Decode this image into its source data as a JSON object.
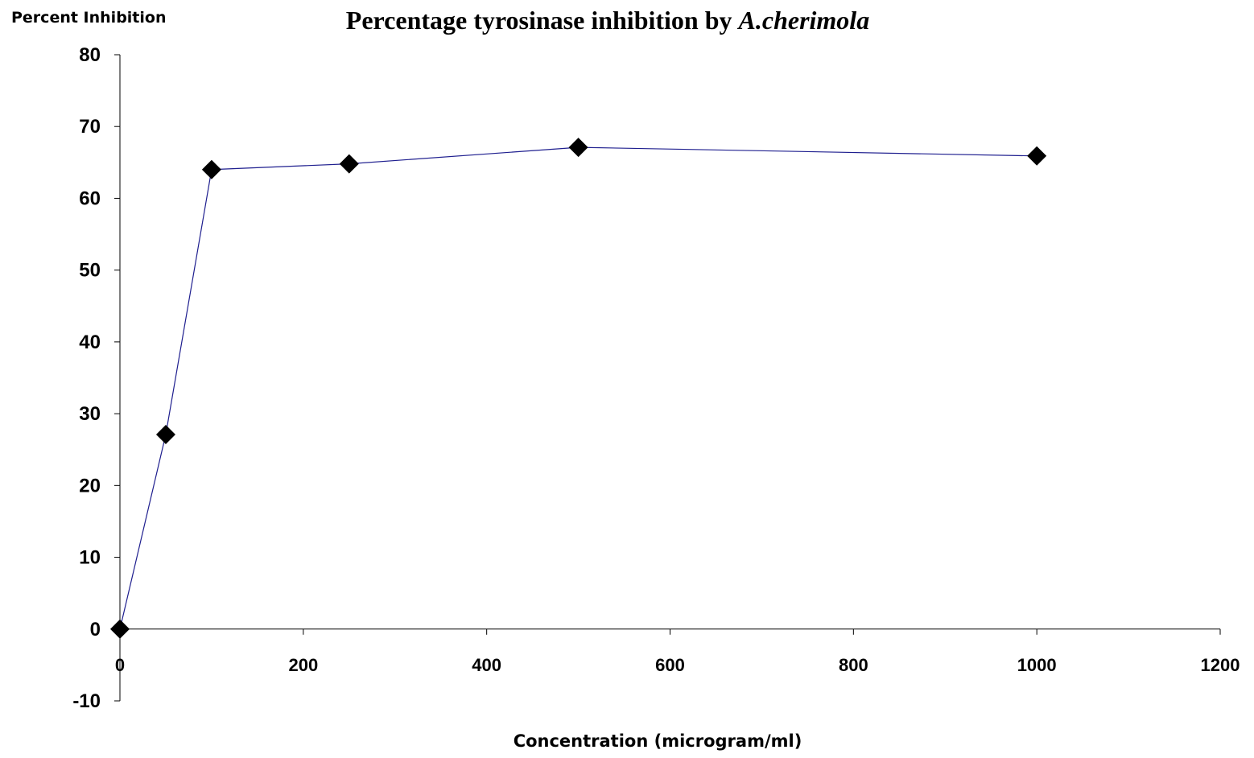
{
  "chart_data": {
    "type": "line",
    "title": "Percentage tyrosinase inhibition by",
    "title_italic": "A.cherimola",
    "ylabel": "Percent Inhibition",
    "xlabel": "Concentration (microgram/ml)",
    "xlim": [
      0,
      1200
    ],
    "ylim": [
      -10,
      80
    ],
    "x_ticks": [
      0,
      200,
      400,
      600,
      800,
      1000,
      1200
    ],
    "y_ticks": [
      -10,
      0,
      10,
      20,
      30,
      40,
      50,
      60,
      70,
      80
    ],
    "grid": false,
    "legend": "none",
    "series": [
      {
        "x": [
          0,
          50,
          100,
          250,
          500,
          1000
        ],
        "y": [
          0,
          27.1,
          64.0,
          64.8,
          67.1,
          65.9
        ],
        "line_color": "#1f1f8f",
        "marker": "diamond",
        "marker_color": "#000000"
      }
    ]
  }
}
